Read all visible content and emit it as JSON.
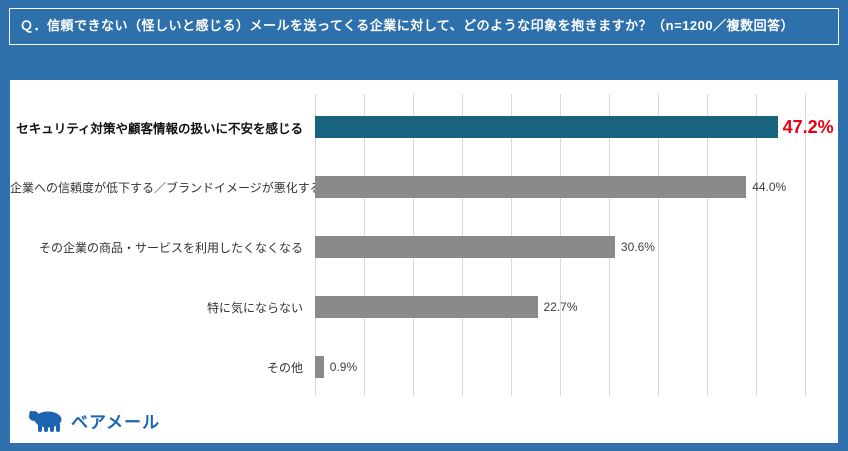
{
  "header": {
    "title": "Ｑ．信頼できない（怪しいと感じる）メールを送ってくる企業に対して、どのような印象を抱きますか？（n=1200／複数回答）"
  },
  "chart_data": {
    "type": "bar",
    "orientation": "horizontal",
    "title": "",
    "xlabel": "",
    "ylabel": "",
    "categories": [
      "セキュリティ対策や顧客情報の扱いに不安を感じる",
      "企業への信頼度が低下する／ブランドイメージが悪化する",
      "その企業の商品・サービスを利用したくなくなる",
      "特に気にならない",
      "その他"
    ],
    "values": [
      47.2,
      44.0,
      30.6,
      22.7,
      0.9
    ],
    "value_labels": [
      "47.2%",
      "44.0%",
      "30.6%",
      "22.7%",
      "0.9%"
    ],
    "xlim": [
      0,
      50
    ],
    "gridline_interval": 5,
    "grid": "on",
    "legend": "none",
    "highlight_index": 0,
    "colors": {
      "highlight_bar": "#18647e",
      "default_bar": "#8a8a8a",
      "highlight_label": "#e60012",
      "default_label": "#404040"
    }
  },
  "footer": {
    "brand": "ベアメール"
  },
  "colors": {
    "background": "#2d70ab",
    "panel": "#ffffff",
    "title_text": "#ffffff",
    "brand_blue": "#1c64b0",
    "gridline": "#d9d9d9"
  }
}
